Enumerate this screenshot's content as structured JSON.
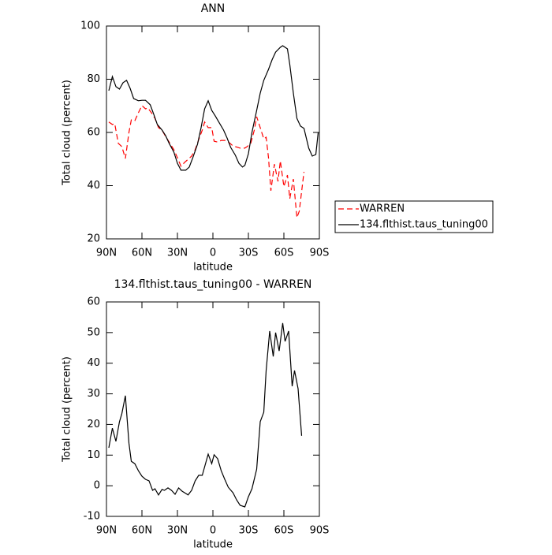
{
  "chart_data": [
    {
      "type": "line",
      "title": "ANN",
      "xlabel": "latitude",
      "ylabel": "Total cloud (percent)",
      "xlim": [
        90,
        -90
      ],
      "xticks": [
        {
          "value": 90,
          "label": "90N"
        },
        {
          "value": 60,
          "label": "60N"
        },
        {
          "value": 30,
          "label": "30N"
        },
        0,
        {
          "value": -30,
          "label": "30S"
        },
        {
          "value": -60,
          "label": "60S"
        },
        {
          "value": -90,
          "label": "90S"
        }
      ],
      "ylim": [
        20,
        100
      ],
      "yticks": [
        20,
        40,
        60,
        80,
        100
      ],
      "legend": "outside-right",
      "series": [
        {
          "name": "WARREN",
          "color": "#ff0000",
          "dash": "dashed",
          "x": [
            88,
            85,
            83,
            80,
            77,
            74,
            71,
            69,
            66,
            63,
            60,
            57,
            55,
            52,
            49,
            46,
            43,
            40,
            37,
            33,
            30,
            27,
            24,
            21,
            18,
            15,
            12,
            9,
            7,
            4,
            1,
            -1,
            -4,
            -7,
            -11,
            -14,
            -17,
            -21,
            -23,
            -27,
            -29,
            -32,
            -35,
            -37,
            -40,
            -43,
            -45,
            -47,
            -49,
            -52,
            -55,
            -57,
            -60,
            -63,
            -65,
            -68,
            -71,
            -73,
            -77
          ],
          "values": [
            63.9,
            63,
            63.3,
            55.9,
            54.7,
            50.2,
            60,
            64.7,
            64.4,
            67.4,
            70.1,
            68.9,
            69.2,
            67.4,
            65.3,
            61.8,
            60.9,
            58.5,
            56.4,
            53.5,
            50.5,
            47.3,
            48.7,
            49.9,
            51.1,
            53.5,
            57.3,
            60.9,
            63.9,
            61.8,
            61.8,
            56.7,
            56.4,
            57,
            57,
            56.1,
            54.9,
            54.4,
            54.1,
            54.1,
            54.7,
            55.9,
            60.9,
            65.9,
            61.8,
            57.6,
            58.2,
            50.5,
            38.1,
            48.1,
            41.6,
            49.3,
            39.6,
            44,
            35.1,
            42.5,
            28,
            30.4,
            45.2
          ]
        },
        {
          "name": "134.flthist.taus_tuning00",
          "color": "#000000",
          "dash": "solid",
          "x": [
            88,
            85,
            82,
            79,
            76,
            73,
            70,
            67,
            63,
            60,
            57,
            53,
            50,
            47,
            43,
            40,
            37,
            33,
            30,
            27,
            23,
            20,
            17,
            13,
            10,
            7,
            4,
            1,
            -2,
            -5,
            -9,
            -12,
            -15,
            -19,
            -22,
            -25,
            -27,
            -30,
            -33,
            -37,
            -40,
            -43,
            -47,
            -50,
            -53,
            -57,
            -59,
            -63,
            -65,
            -68,
            -71,
            -74,
            -77,
            -81,
            -84,
            -87,
            -89
          ],
          "values": [
            75.7,
            81,
            77.2,
            76.3,
            78.7,
            79.6,
            76.6,
            72.7,
            71.9,
            72.1,
            72.1,
            70.4,
            66.8,
            63,
            60.9,
            58.8,
            55.9,
            52.6,
            48.4,
            45.8,
            45.8,
            47,
            50.5,
            55.6,
            61.8,
            68.9,
            71.9,
            68.3,
            66.2,
            63.9,
            60.9,
            57.9,
            54.4,
            51.4,
            48.4,
            47,
            47.6,
            52,
            60,
            68.3,
            74.8,
            79.6,
            83.7,
            87.3,
            90.2,
            92,
            92.6,
            91.4,
            85.5,
            74.8,
            65.3,
            62.4,
            61.5,
            54.1,
            51.1,
            51.7,
            60
          ]
        }
      ]
    },
    {
      "type": "line",
      "title": "134.flthist.taus_tuning00 - WARREN",
      "xlabel": "latitude",
      "ylabel": "Total cloud (percent)",
      "xlim": [
        90,
        -90
      ],
      "xticks": [
        {
          "value": 90,
          "label": "90N"
        },
        {
          "value": 60,
          "label": "60N"
        },
        {
          "value": 30,
          "label": "30N"
        },
        0,
        {
          "value": -30,
          "label": "30S"
        },
        {
          "value": -60,
          "label": "60S"
        },
        {
          "value": -90,
          "label": "90S"
        }
      ],
      "ylim": [
        -10,
        60
      ],
      "yticks": [
        -10,
        0,
        10,
        20,
        30,
        40,
        50,
        60
      ],
      "color": "#000000",
      "x": [
        88,
        85,
        82,
        79,
        77,
        74,
        71,
        69,
        66,
        63,
        60,
        57,
        54,
        51,
        49,
        46,
        43,
        41,
        38,
        35,
        32,
        29,
        26,
        23,
        21,
        18,
        15,
        12,
        9,
        7,
        4,
        1,
        -1,
        -4,
        -7,
        -10,
        -13,
        -17,
        -20,
        -23,
        -27,
        -30,
        -33,
        -37,
        -40,
        -43,
        -45,
        -48,
        -51,
        -53,
        -56,
        -59,
        -61,
        -64,
        -67,
        -69,
        -72,
        -75
      ],
      "values": [
        12.4,
        18.8,
        14.5,
        20.9,
        23.5,
        29.4,
        13.9,
        8,
        7.2,
        4.9,
        3.1,
        2.1,
        1.6,
        -1.5,
        -1,
        -3,
        -1.2,
        -1.5,
        -0.7,
        -1.5,
        -2.8,
        -0.7,
        -1.8,
        -2.5,
        -3,
        -1.5,
        1.6,
        3.4,
        3.4,
        6.2,
        10.3,
        7.2,
        10.1,
        8.8,
        4.9,
        2.1,
        -0.5,
        -2.3,
        -4.6,
        -6.4,
        -6.9,
        -3.6,
        -1,
        5.4,
        20.9,
        24,
        37.6,
        50.5,
        42.2,
        50,
        44,
        53.1,
        47.1,
        50.5,
        32.5,
        37.6,
        31.7,
        16.3
      ]
    }
  ]
}
